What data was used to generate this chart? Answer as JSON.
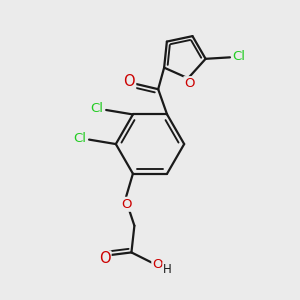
{
  "bg_color": "#ebebeb",
  "bond_color": "#1a1a1a",
  "bond_width": 1.6,
  "atom_colors": {
    "C": "#1a1a1a",
    "O": "#cc0000",
    "Cl": "#22cc22",
    "H": "#1a1a1a"
  },
  "font_size": 9.5,
  "figsize": [
    3.0,
    3.0
  ],
  "dpi": 100
}
